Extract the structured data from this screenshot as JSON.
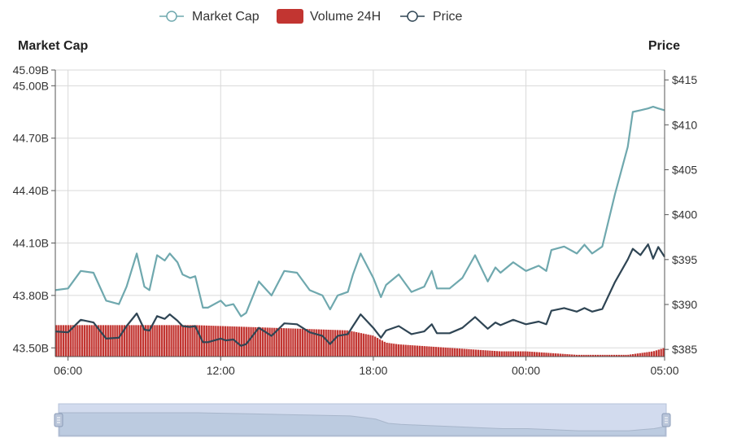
{
  "chart_data": {
    "type": "line",
    "legend": [
      {
        "name": "Market Cap",
        "color": "#6fa8ae",
        "kind": "line"
      },
      {
        "name": "Volume 24H",
        "color": "#c23531",
        "kind": "bar"
      },
      {
        "name": "Price",
        "color": "#2f4554",
        "kind": "line"
      }
    ],
    "left_axis": {
      "title": "Market Cap",
      "ticks": [
        "45.09B",
        "45.00B",
        "44.70B",
        "44.40B",
        "44.10B",
        "43.80B",
        "43.50B"
      ],
      "tick_values": [
        45.09,
        45.0,
        44.7,
        44.4,
        44.1,
        43.8,
        43.5
      ],
      "ylim": [
        43.45,
        45.09
      ]
    },
    "right_axis": {
      "title": "Price",
      "ticks": [
        "$415",
        "$410",
        "$405",
        "$400",
        "$395",
        "$390",
        "$385"
      ],
      "tick_values": [
        415,
        410,
        405,
        400,
        395,
        390,
        385
      ],
      "ylim": [
        384.2,
        416.1
      ]
    },
    "x_axis": {
      "ticks": [
        "06:00",
        "12:00",
        "18:00",
        "00:00",
        "05:00"
      ],
      "tick_hours": [
        1.0,
        7.0,
        13.0,
        19.0,
        24.45
      ],
      "xlim": [
        0.5,
        24.45
      ]
    },
    "series": [
      {
        "name": "Market Cap",
        "x": [
          0.5,
          1.0,
          1.5,
          2.0,
          2.5,
          3.0,
          3.3,
          3.7,
          4.0,
          4.2,
          4.5,
          4.8,
          5.0,
          5.3,
          5.5,
          5.8,
          6.0,
          6.3,
          6.5,
          7.0,
          7.2,
          7.5,
          7.8,
          8.0,
          8.5,
          9.0,
          9.5,
          10.0,
          10.5,
          11.0,
          11.3,
          11.6,
          12.0,
          12.2,
          12.5,
          13.0,
          13.3,
          13.5,
          14.0,
          14.5,
          15.0,
          15.3,
          15.5,
          16.0,
          16.5,
          17.0,
          17.5,
          17.8,
          18.0,
          18.5,
          19.0,
          19.5,
          19.8,
          20.0,
          20.5,
          21.0,
          21.3,
          21.6,
          22.0,
          22.5,
          23.0,
          23.2,
          23.5,
          23.8,
          24.0,
          24.2,
          24.45
        ],
        "values": [
          43.83,
          43.84,
          43.94,
          43.93,
          43.77,
          43.75,
          43.85,
          44.04,
          43.85,
          43.83,
          44.03,
          44.0,
          44.04,
          43.99,
          43.92,
          43.9,
          43.91,
          43.73,
          43.73,
          43.77,
          43.74,
          43.75,
          43.68,
          43.7,
          43.88,
          43.8,
          43.94,
          43.93,
          43.83,
          43.8,
          43.72,
          43.8,
          43.82,
          43.92,
          44.04,
          43.9,
          43.79,
          43.86,
          43.92,
          43.82,
          43.85,
          43.94,
          43.84,
          43.84,
          43.9,
          44.03,
          43.88,
          43.96,
          43.93,
          43.99,
          43.94,
          43.97,
          43.94,
          44.06,
          44.08,
          44.04,
          44.09,
          44.04,
          44.08,
          44.38,
          44.65,
          44.85,
          44.86,
          44.87,
          44.88,
          44.87,
          44.86
        ]
      },
      {
        "name": "Price",
        "x": [
          0.5,
          1.0,
          1.5,
          2.0,
          2.5,
          3.0,
          3.3,
          3.7,
          4.0,
          4.2,
          4.5,
          4.8,
          5.0,
          5.3,
          5.5,
          5.8,
          6.0,
          6.3,
          6.5,
          7.0,
          7.2,
          7.5,
          7.8,
          8.0,
          8.5,
          9.0,
          9.5,
          10.0,
          10.5,
          11.0,
          11.3,
          11.6,
          12.0,
          12.2,
          12.5,
          13.0,
          13.3,
          13.5,
          14.0,
          14.5,
          15.0,
          15.3,
          15.5,
          16.0,
          16.5,
          17.0,
          17.5,
          17.8,
          18.0,
          18.5,
          19.0,
          19.5,
          19.8,
          20.0,
          20.5,
          21.0,
          21.3,
          21.6,
          22.0,
          22.5,
          23.0,
          23.2,
          23.5,
          23.8,
          24.0,
          24.2,
          24.45
        ],
        "values": [
          387.0,
          386.9,
          388.3,
          388.0,
          386.2,
          386.3,
          387.6,
          389.0,
          387.2,
          387.1,
          388.7,
          388.4,
          388.9,
          388.2,
          387.6,
          387.5,
          387.6,
          385.8,
          385.8,
          386.2,
          386.0,
          386.1,
          385.4,
          385.6,
          387.4,
          386.5,
          387.9,
          387.8,
          386.9,
          386.5,
          385.6,
          386.5,
          386.7,
          387.6,
          388.9,
          387.4,
          386.3,
          387.1,
          387.6,
          386.7,
          387.0,
          387.8,
          386.8,
          386.8,
          387.4,
          388.6,
          387.3,
          388.0,
          387.7,
          388.3,
          387.8,
          388.1,
          387.8,
          389.3,
          389.6,
          389.2,
          389.6,
          389.2,
          389.5,
          392.5,
          395.0,
          396.2,
          395.5,
          396.7,
          395.1,
          396.4,
          395.3
        ]
      },
      {
        "name": "Volume 24H",
        "x": [
          0.5,
          2.0,
          4.0,
          6.0,
          8.0,
          10.0,
          12.0,
          13.0,
          13.5,
          14.0,
          15.0,
          16.0,
          17.0,
          18.0,
          19.0,
          20.0,
          21.0,
          22.0,
          23.0,
          23.5,
          24.0,
          24.45
        ],
        "values": [
          43.63,
          43.63,
          43.63,
          43.63,
          43.62,
          43.61,
          43.6,
          43.57,
          43.53,
          43.52,
          43.51,
          43.5,
          43.49,
          43.48,
          43.48,
          43.47,
          43.46,
          43.46,
          43.46,
          43.47,
          43.48,
          43.5
        ]
      }
    ]
  }
}
